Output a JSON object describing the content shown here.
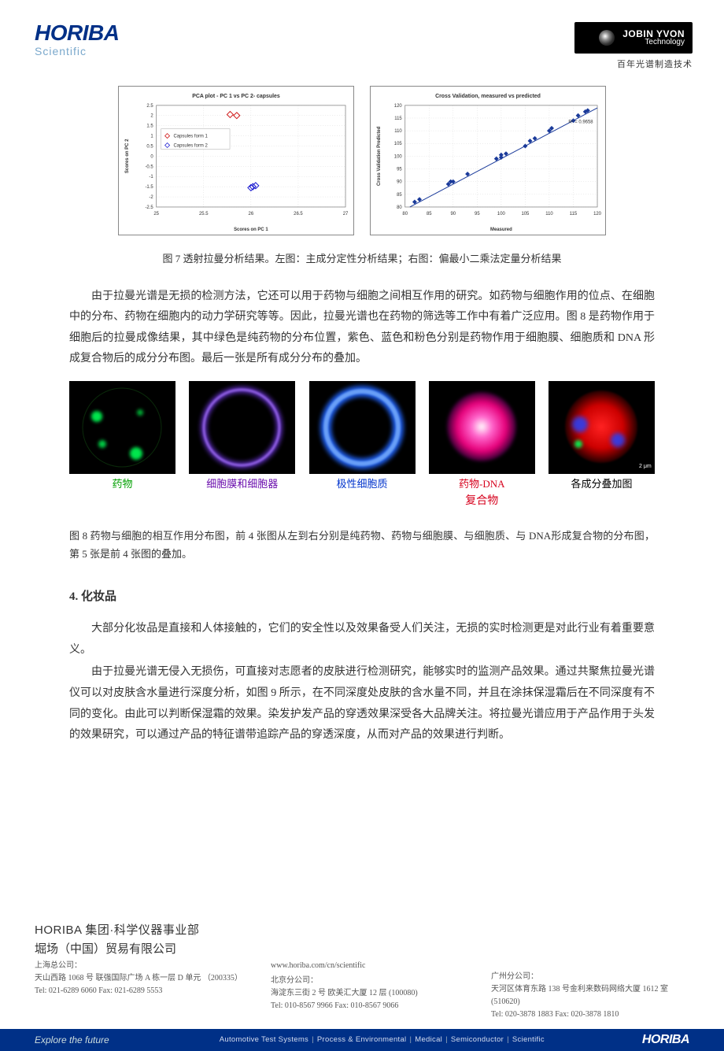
{
  "header": {
    "brand": "HORIBA",
    "brand_sub": "Scientific",
    "jy_line1": "JOBIN YVON",
    "jy_line2": "Technology",
    "jy_sub": "百年光谱制造技术"
  },
  "chart_left": {
    "title": "PCA plot - PC 1 vs PC 2- capsules",
    "xlabel": "Scores on PC 1",
    "ylabel": "Scores on PC 2",
    "legend": [
      "Capsules form 1",
      "Capsules form 2"
    ],
    "legend_colors": [
      "#d01818",
      "#1818d0"
    ],
    "xlim": [
      25,
      27
    ],
    "xticks": [
      25,
      25.5,
      26,
      26.5,
      27
    ],
    "ylim": [
      -2.5,
      2.5
    ],
    "yticks": [
      -2.5,
      -2,
      -1.5,
      -1,
      -0.5,
      0,
      0.5,
      1,
      1.5,
      2,
      2.5
    ],
    "grid_color": "#d8d8d8",
    "series": [
      {
        "color": "#d01818",
        "marker": "diamond",
        "points": [
          [
            25.78,
            2.05
          ],
          [
            25.85,
            2.0
          ]
        ]
      },
      {
        "color": "#1818d0",
        "marker": "diamond",
        "points": [
          [
            26.0,
            -1.55
          ],
          [
            26.05,
            -1.45
          ],
          [
            26.02,
            -1.5
          ]
        ]
      }
    ],
    "title_fontsize": 7,
    "tick_fontsize": 6
  },
  "chart_right": {
    "title": "Cross Validation, measured vs predicted",
    "xlabel": "Measured",
    "ylabel": "Cross Validation Predicted",
    "xlim": [
      80,
      120
    ],
    "xticks": [
      80,
      85,
      90,
      95,
      100,
      105,
      110,
      115,
      120
    ],
    "ylim": [
      80,
      120
    ],
    "yticks": [
      80,
      85,
      90,
      95,
      100,
      105,
      110,
      115,
      120
    ],
    "grid_color": "#d8d8d8",
    "r2_label": "R² = 0.9658",
    "line_color": "#1a3a9a",
    "point_color": "#1a3a9a",
    "points": [
      [
        82,
        82
      ],
      [
        83,
        83
      ],
      [
        89,
        89
      ],
      [
        89.5,
        90
      ],
      [
        90,
        90
      ],
      [
        93,
        93
      ],
      [
        99,
        99
      ],
      [
        100,
        99.5
      ],
      [
        100,
        100.5
      ],
      [
        101,
        101
      ],
      [
        105,
        104
      ],
      [
        106,
        106
      ],
      [
        107,
        107
      ],
      [
        110,
        110
      ],
      [
        110.5,
        111
      ],
      [
        115,
        114
      ],
      [
        116,
        116
      ],
      [
        117.5,
        117.5
      ],
      [
        118,
        118
      ]
    ],
    "fit_line": {
      "x1": 81,
      "y1": 80,
      "x2": 120,
      "y2": 119
    },
    "title_fontsize": 7,
    "tick_fontsize": 6
  },
  "caption7": "图 7 透射拉曼分析结果。左图：主成分定性分析结果；右图：偏最小二乘法定量分析结果",
  "para1": "由于拉曼光谱是无损的检测方法，它还可以用于药物与细胞之间相互作用的研究。如药物与细胞作用的位点、在细胞中的分布、药物在细胞内的动力学研究等等。因此，拉曼光谱也在药物的筛选等工作中有着广泛应用。图 8 是药物作用于细胞后的拉曼成像结果，其中绿色是纯药物的分布位置，紫色、蓝色和粉色分别是药物作用于细胞膜、细胞质和 DNA 形成复合物后的成分分布图。最后一张是所有成分分布的叠加。",
  "cells": [
    {
      "label": "药物",
      "color_class": "c-green",
      "img_type": "green"
    },
    {
      "label": "细胞膜和细胞器",
      "color_class": "c-purple",
      "img_type": "purple"
    },
    {
      "label": "极性细胞质",
      "color_class": "c-blue",
      "img_type": "blue"
    },
    {
      "label": "药物-DNA",
      "label2": "复合物",
      "color_class": "c-red",
      "img_type": "magenta"
    },
    {
      "label": "各成分叠加图",
      "color_class": "c-black",
      "img_type": "overlay"
    }
  ],
  "caption8": "图 8 药物与细胞的相互作用分布图，前 4 张图从左到右分别是纯药物、药物与细胞膜、与细胞质、与 DNA形成复合物的分布图，第 5 张是前 4 张图的叠加。",
  "section4_title": "4.  化妆品",
  "para2": "大部分化妆品是直接和人体接触的，它们的安全性以及效果备受人们关注，无损的实时检测更是对此行业有着重要意义。",
  "para3": "由于拉曼光谱无侵入无损伤，可直接对志愿者的皮肤进行检测研究，能够实时的监测产品效果。通过共聚焦拉曼光谱仪可以对皮肤含水量进行深度分析，如图 9 所示，在不同深度处皮肤的含水量不同，并且在涂抹保湿霜后在不同深度有不同的变化。由此可以判断保湿霜的效果。染发护发产品的穿透效果深受各大品牌关注。将拉曼光谱应用于产品作用于头发的效果研究，可以通过产品的特征谱带追踪产品的穿透深度，从而对产品的效果进行判断。",
  "footer": {
    "group_title": "HORIBA 集团·科学仪器事业部",
    "company": "堀场（中国）贸易有限公司",
    "url": "www.horiba.com/cn/scientific",
    "col1_h": "上海总公司：",
    "col1_addr": "天山西路 1068 号 联强国际广场 A 栋一层 D 单元  （200335）",
    "col1_tel": "Tel:  021-6289 6060    Fax:  021-6289 5553",
    "col2_h": "北京分公司：",
    "col2_addr": "海淀东三街 2 号  欧美汇大厦 12 层 (100080)",
    "col2_tel": "Tel: 010-8567 9966   Fax: 010-8567 9066",
    "col3_h": "广州分公司：",
    "col3_addr": "天河区体育东路 138 号金利来数码网络大厦 1612 室 (510620)",
    "col3_tel": "Tel: 020-3878 1883   Fax: 020-3878 1810"
  },
  "footer_bar": {
    "explore": "Explore the future",
    "segments": [
      "Automotive Test Systems",
      "Process & Environmental",
      "Medical",
      "Semiconductor",
      "Scientific"
    ],
    "logo": "HORIBA"
  }
}
